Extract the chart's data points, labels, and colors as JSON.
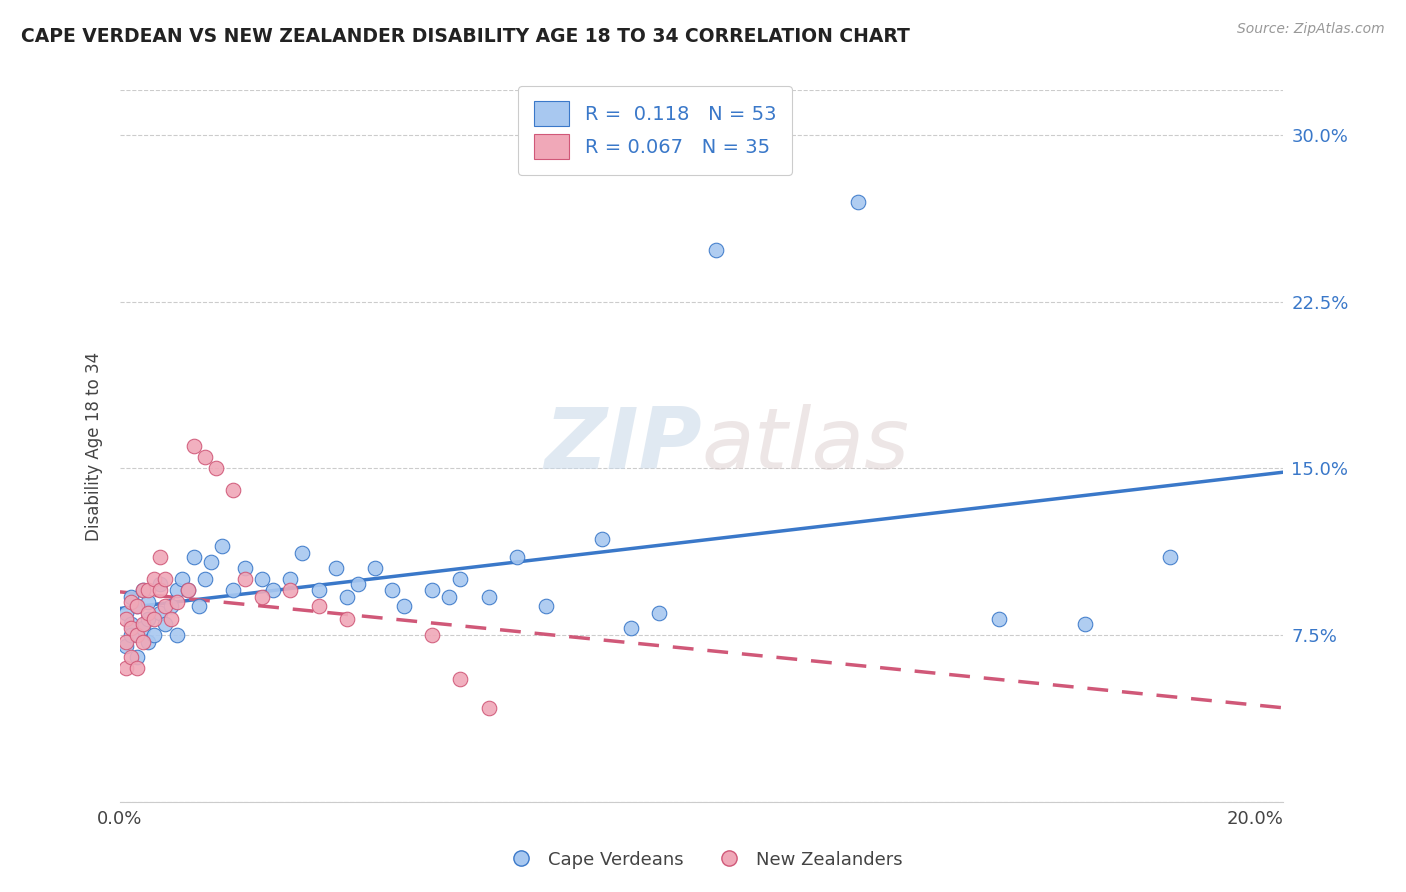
{
  "title": "CAPE VERDEAN VS NEW ZEALANDER DISABILITY AGE 18 TO 34 CORRELATION CHART",
  "source": "Source: ZipAtlas.com",
  "ylabel": "Disability Age 18 to 34",
  "xlim": [
    0.0,
    0.205
  ],
  "ylim": [
    0.0,
    0.32
  ],
  "xticks": [
    0.0,
    0.05,
    0.1,
    0.15,
    0.2
  ],
  "xtick_labels": [
    "0.0%",
    "",
    "",
    "",
    "20.0%"
  ],
  "yticks": [
    0.0,
    0.075,
    0.15,
    0.225,
    0.3
  ],
  "ytick_labels_right": [
    "",
    "7.5%",
    "15.0%",
    "22.5%",
    "30.0%"
  ],
  "legend_label1": "Cape Verdeans",
  "legend_label2": "New Zealanders",
  "R1": 0.118,
  "N1": 53,
  "R2": 0.067,
  "N2": 35,
  "color1": "#a8c8f0",
  "color2": "#f0a8b8",
  "line_color1": "#3a78c9",
  "line_color2": "#d05878",
  "background_color": "#ffffff",
  "blue_x": [
    0.001,
    0.001,
    0.002,
    0.002,
    0.002,
    0.003,
    0.003,
    0.004,
    0.004,
    0.005,
    0.005,
    0.005,
    0.006,
    0.007,
    0.007,
    0.008,
    0.009,
    0.01,
    0.01,
    0.011,
    0.012,
    0.013,
    0.014,
    0.015,
    0.016,
    0.018,
    0.02,
    0.022,
    0.025,
    0.027,
    0.03,
    0.032,
    0.035,
    0.038,
    0.04,
    0.042,
    0.045,
    0.048,
    0.05,
    0.055,
    0.058,
    0.06,
    0.065,
    0.07,
    0.075,
    0.085,
    0.09,
    0.095,
    0.105,
    0.13,
    0.155,
    0.17,
    0.185
  ],
  "blue_y": [
    0.085,
    0.07,
    0.08,
    0.092,
    0.075,
    0.088,
    0.065,
    0.078,
    0.095,
    0.082,
    0.072,
    0.09,
    0.075,
    0.085,
    0.098,
    0.08,
    0.088,
    0.075,
    0.095,
    0.1,
    0.095,
    0.11,
    0.088,
    0.1,
    0.108,
    0.115,
    0.095,
    0.105,
    0.1,
    0.095,
    0.1,
    0.112,
    0.095,
    0.105,
    0.092,
    0.098,
    0.105,
    0.095,
    0.088,
    0.095,
    0.092,
    0.1,
    0.092,
    0.11,
    0.088,
    0.118,
    0.078,
    0.085,
    0.248,
    0.27,
    0.082,
    0.08,
    0.11
  ],
  "pink_x": [
    0.001,
    0.001,
    0.001,
    0.002,
    0.002,
    0.002,
    0.003,
    0.003,
    0.003,
    0.004,
    0.004,
    0.004,
    0.005,
    0.005,
    0.006,
    0.006,
    0.007,
    0.007,
    0.008,
    0.008,
    0.009,
    0.01,
    0.012,
    0.013,
    0.015,
    0.017,
    0.02,
    0.022,
    0.025,
    0.03,
    0.035,
    0.04,
    0.055,
    0.06,
    0.065
  ],
  "pink_y": [
    0.082,
    0.072,
    0.06,
    0.09,
    0.078,
    0.065,
    0.088,
    0.075,
    0.06,
    0.095,
    0.08,
    0.072,
    0.085,
    0.095,
    0.1,
    0.082,
    0.095,
    0.11,
    0.088,
    0.1,
    0.082,
    0.09,
    0.095,
    0.16,
    0.155,
    0.15,
    0.14,
    0.1,
    0.092,
    0.095,
    0.088,
    0.082,
    0.075,
    0.055,
    0.042
  ]
}
